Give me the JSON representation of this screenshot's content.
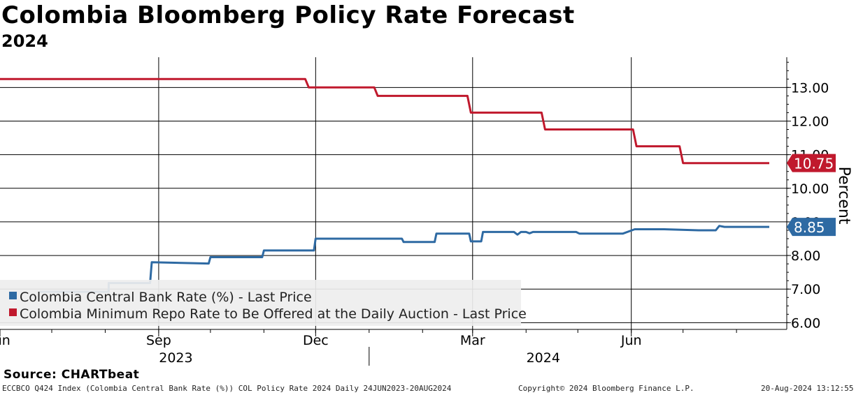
{
  "title": "Colombia Bloomberg Policy Rate Forecast",
  "subtitle": "2024",
  "source": "Source: CHARTbeat",
  "footer": {
    "left": "ECCBCO Q424 Index (Colombia Central Bank Rate (%)) COL Policy Rate 2024  Daily 24JUN2023-20AUG2024",
    "center": "Copyright© 2024 Bloomberg Finance L.P.",
    "right": "20-Aug-2024 13:12:55"
  },
  "colors": {
    "repo": "#c0192d",
    "central": "#2e6aa3",
    "central_light": "#8bb2d6"
  },
  "chart_data": {
    "type": "line",
    "xlabel": "",
    "ylabel": "Percent",
    "x_range": [
      "2023-06-01",
      "2024-08-20"
    ],
    "ylim": [
      5.8,
      13.9
    ],
    "y_ticks": [
      {
        "v": 6,
        "label": "6.00"
      },
      {
        "v": 7,
        "label": "7.00"
      },
      {
        "v": 8,
        "label": "8.00"
      },
      {
        "v": 9,
        "label": "9.00"
      },
      {
        "v": 10,
        "label": "10.00"
      },
      {
        "v": 11,
        "label": "11.00"
      },
      {
        "v": 12,
        "label": "12.00"
      },
      {
        "v": 13,
        "label": "13.00"
      }
    ],
    "x_month_labels": [
      {
        "date": "2023-06-01",
        "label": "Jun"
      },
      {
        "date": "2023-09-01",
        "label": "Sep"
      },
      {
        "date": "2023-12-01",
        "label": "Dec"
      },
      {
        "date": "2024-03-01",
        "label": "Mar"
      },
      {
        "date": "2024-06-01",
        "label": "Jun"
      }
    ],
    "x_year_labels": [
      {
        "date": "2023-09-15",
        "label": "2023"
      },
      {
        "date": "2024-04-15",
        "label": "2024"
      }
    ],
    "grid": true,
    "legend_position": "bottom-left",
    "series": [
      {
        "name": "Colombia Central Bank Rate (%) - Last Price",
        "color": "#2e6aa3",
        "last_label": "8.85",
        "points": [
          [
            "2023-06-24",
            6.92
          ],
          [
            "2023-08-03",
            6.92
          ],
          [
            "2023-08-03",
            7.18
          ],
          [
            "2023-08-27",
            7.18
          ],
          [
            "2023-08-28",
            7.8
          ],
          [
            "2023-09-30",
            7.76
          ],
          [
            "2023-10-01",
            7.95
          ],
          [
            "2023-10-31",
            7.95
          ],
          [
            "2023-11-01",
            8.15
          ],
          [
            "2023-11-30",
            8.15
          ],
          [
            "2023-12-01",
            8.5
          ],
          [
            "2024-01-20",
            8.5
          ],
          [
            "2024-01-21",
            8.4
          ],
          [
            "2024-02-08",
            8.4
          ],
          [
            "2024-02-09",
            8.65
          ],
          [
            "2024-02-28",
            8.65
          ],
          [
            "2024-02-29",
            8.42
          ],
          [
            "2024-03-06",
            8.42
          ],
          [
            "2024-03-07",
            8.7
          ],
          [
            "2024-03-25",
            8.7
          ],
          [
            "2024-03-27",
            8.62
          ],
          [
            "2024-03-29",
            8.7
          ],
          [
            "2024-04-01",
            8.7
          ],
          [
            "2024-04-03",
            8.66
          ],
          [
            "2024-04-05",
            8.7
          ],
          [
            "2024-04-30",
            8.7
          ],
          [
            "2024-05-02",
            8.65
          ],
          [
            "2024-05-27",
            8.65
          ],
          [
            "2024-06-03",
            8.78
          ],
          [
            "2024-06-20",
            8.78
          ],
          [
            "2024-07-10",
            8.75
          ],
          [
            "2024-07-20",
            8.75
          ],
          [
            "2024-07-22",
            8.88
          ],
          [
            "2024-07-25",
            8.85
          ],
          [
            "2024-08-20",
            8.85
          ]
        ]
      },
      {
        "name": "Colombia Minimum Repo Rate to Be Offered at the Daily Auction - Last Price",
        "color": "#c0192d",
        "last_label": "10.75",
        "points": [
          [
            "2023-06-01",
            13.25
          ],
          [
            "2023-11-25",
            13.25
          ],
          [
            "2023-11-27",
            13.0
          ],
          [
            "2024-01-04",
            13.0
          ],
          [
            "2024-01-06",
            12.75
          ],
          [
            "2024-02-27",
            12.75
          ],
          [
            "2024-02-29",
            12.25
          ],
          [
            "2024-04-10",
            12.25
          ],
          [
            "2024-04-12",
            11.75
          ],
          [
            "2024-06-02",
            11.75
          ],
          [
            "2024-06-04",
            11.25
          ],
          [
            "2024-06-29",
            11.25
          ],
          [
            "2024-07-01",
            10.75
          ],
          [
            "2024-08-20",
            10.75
          ]
        ]
      }
    ]
  }
}
